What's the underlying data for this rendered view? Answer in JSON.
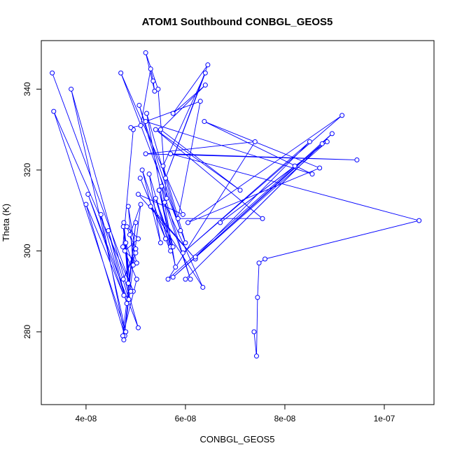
{
  "chart_data": {
    "type": "scatter",
    "title": "ATOM1 Southbound CONBGL_GEOS5",
    "xlabel": "CONBGL_GEOS5",
    "ylabel": "Theta (K)",
    "xlim": [
      3.1e-08,
      1.1e-07
    ],
    "ylim": [
      262,
      352
    ],
    "x_ticks": [
      4e-08,
      6e-08,
      8e-08,
      1e-07
    ],
    "x_tick_labels": [
      "4e-08",
      "6e-08",
      "8e-08",
      "1e-07"
    ],
    "y_ticks": [
      280,
      300,
      320,
      340
    ],
    "y_tick_labels": [
      "280",
      "300",
      "320",
      "340"
    ],
    "grid": false,
    "connected": true,
    "marker": "open-circle",
    "series_color": "#0000ff",
    "series": [
      {
        "x": [
          3.32e-08,
          4.95e-08,
          3.35e-08,
          4.8e-08,
          3.7e-08,
          5.05e-08,
          4.04e-08,
          4.76e-08,
          4e-08,
          4.78e-08,
          4.3e-08,
          4.82e-08,
          4.45e-08,
          4.86e-08,
          4.76e-08,
          4.9e-08,
          4.75e-08,
          4.85e-08,
          4.8e-08,
          4.95e-08,
          4.85e-08,
          5e-08,
          4.75e-08,
          5e-08,
          4.82e-08,
          5.05e-08,
          4.78e-08,
          5.02e-08,
          4.88e-08,
          5.1e-08,
          4.76e-08,
          5e-08,
          4.74e-08,
          5.02e-08,
          4.74e-08,
          4.95e-08,
          4.9e-08,
          5.1e-08,
          5.3e-08,
          5.35e-08,
          5.38e-08,
          5.2e-08,
          5.45e-08,
          5.62e-08,
          5.07e-08,
          5.9e-08,
          5.22e-08,
          5.7e-08,
          5.27e-08,
          5.5e-08,
          5.13e-08,
          5.6e-08,
          5.09e-08,
          5.7e-08,
          5.4e-08,
          5.75e-08,
          5.47e-08,
          5.8e-08,
          5.52e-08,
          6.1e-08,
          5.58e-08,
          6.35e-08,
          5.3e-08,
          6.2e-08,
          5.05e-08,
          5.95e-08,
          4.7e-08,
          6e-08,
          5.55e-08,
          6.4e-08,
          5.6e-08,
          6.45e-08,
          5.75e-08,
          6.4e-08,
          5.5e-08,
          7.1e-08,
          5.4e-08,
          7.55e-08,
          5.85e-08,
          6.3e-08,
          5.2e-08,
          8.55e-08,
          6.38e-08,
          8.7e-08,
          6.05e-08,
          9.15e-08,
          5.95e-08,
          8.5e-08,
          6.2e-08,
          8.75e-08,
          6e-08,
          8.95e-08,
          5.75e-08,
          8.85e-08,
          6.7e-08,
          8.2e-08,
          5.65e-08,
          7.4e-08,
          5.2e-08,
          9.45e-08,
          5.7e-08,
          1.07e-07,
          7.6e-08,
          7.48e-08,
          7.45e-08,
          7.43e-08,
          7.38e-08
        ],
        "y": [
          344,
          290,
          334.5,
          280,
          340,
          281,
          314,
          289,
          311.5,
          279,
          309,
          287,
          305,
          288,
          307,
          290,
          306,
          292,
          302,
          296.5,
          311,
          299.5,
          293,
          300.5,
          306,
          303,
          300,
          297,
          304,
          311.5,
          278,
          307,
          279,
          293,
          301,
          330,
          330.5,
          331,
          345,
          342,
          339.5,
          349,
          340,
          313,
          336,
          305,
          334,
          301,
          319,
          302,
          320,
          303,
          318,
          300,
          313,
          301,
          315,
          296,
          316,
          293,
          312,
          291,
          311,
          298,
          314,
          309,
          344,
          302,
          321,
          344,
          318,
          346,
          334,
          341,
          330,
          315,
          330,
          308,
          308,
          337,
          332,
          319,
          332,
          320.5,
          307,
          333.5,
          299.5,
          327,
          298.5,
          326.5,
          293,
          329,
          293.5,
          327,
          307,
          321,
          293,
          327,
          324,
          322.5,
          324,
          307.5,
          298,
          297,
          288.5,
          274,
          280
        ]
      }
    ]
  }
}
